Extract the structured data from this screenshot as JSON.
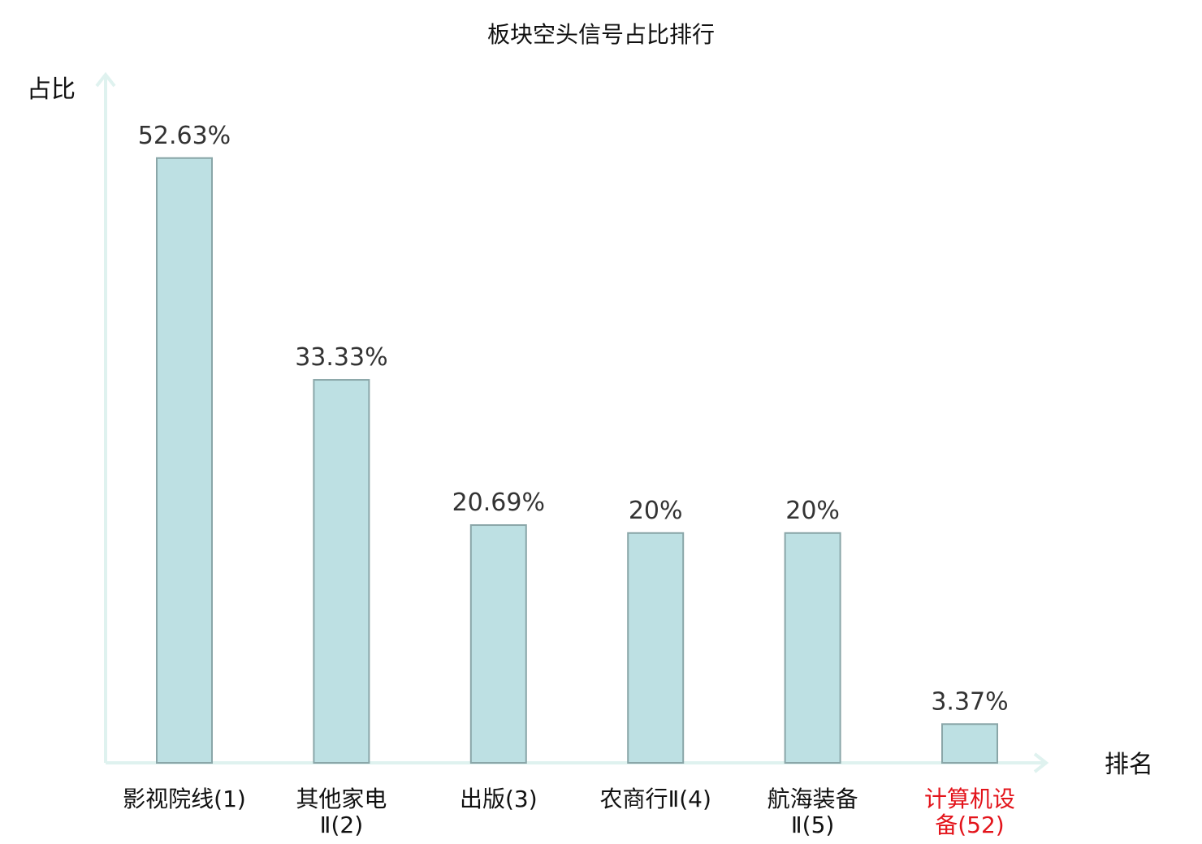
{
  "chart_data": {
    "type": "bar",
    "title": "板块空头信号占比排行",
    "ylabel": "占比",
    "xlabel": "排名",
    "ylim": [
      0,
      60
    ],
    "grid": false,
    "legend": "none",
    "categories": [
      {
        "line1": "影视院线(1)",
        "line2": "",
        "highlight": false
      },
      {
        "line1": "其他家电",
        "line2": "Ⅱ(2)",
        "highlight": false
      },
      {
        "line1": "出版(3)",
        "line2": "",
        "highlight": false
      },
      {
        "line1": "农商行Ⅱ(4)",
        "line2": "",
        "highlight": false
      },
      {
        "line1": "航海装备",
        "line2": "Ⅱ(5)",
        "highlight": false
      },
      {
        "line1": "计算机设",
        "line2": "备(52)",
        "highlight": true
      }
    ],
    "values": [
      52.63,
      33.33,
      20.69,
      20,
      20,
      3.37
    ],
    "value_labels": [
      "52.63%",
      "33.33%",
      "20.69%",
      "20%",
      "20%",
      "3.37%"
    ],
    "colors": {
      "bar_fill": "#bde0e3",
      "bar_stroke": "#8aa6a8",
      "axis": "#dff2ef",
      "highlight_text": "#e3141b"
    }
  }
}
